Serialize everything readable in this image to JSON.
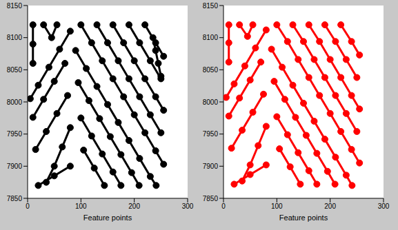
{
  "chart_data": [
    {
      "type": "scatter",
      "xlabel": "Feature points",
      "color": "#000000",
      "marker": "circle",
      "line_style": "solid",
      "grid": false,
      "xlim": [
        0,
        300
      ],
      "xticks": [
        0,
        100,
        200,
        300
      ],
      "ylim": [
        7850,
        8150
      ],
      "yticks": [
        7850,
        7900,
        7950,
        8000,
        8050,
        8100,
        8150
      ],
      "series": [
        {
          "x": [
            100,
            120,
            140,
            160,
            180,
            200,
            220,
            240,
            255
          ],
          "values": [
            8120,
            8092,
            8064,
            8036,
            8008,
            7980,
            7952,
            7924,
            7903
          ]
        },
        {
          "x": [
            130,
            150,
            170,
            190,
            210,
            230,
            250
          ],
          "values": [
            8120,
            8092,
            8064,
            8036,
            8008,
            7980,
            7952
          ]
        },
        {
          "x": [
            160,
            180,
            200,
            220,
            240,
            255
          ],
          "values": [
            8120,
            8092,
            8064,
            8036,
            8008,
            7987
          ]
        },
        {
          "x": [
            190,
            210,
            230,
            250
          ],
          "values": [
            8120,
            8092,
            8064,
            8036
          ]
        },
        {
          "x": [
            220,
            240,
            255
          ],
          "values": [
            8120,
            8092,
            8071
          ]
        },
        {
          "x": [
            90,
            110,
            130,
            150,
            170,
            190,
            210,
            230,
            241
          ],
          "values": [
            8080,
            8052,
            8024,
            7996,
            7968,
            7940,
            7912,
            7884,
            7870
          ]
        },
        {
          "x": [
            95,
            115,
            135,
            155,
            175,
            195,
            209
          ],
          "values": [
            8030,
            8002,
            7974,
            7946,
            7918,
            7890,
            7870
          ]
        },
        {
          "x": [
            100,
            120,
            140,
            160,
            175
          ],
          "values": [
            7975,
            7947,
            7919,
            7891,
            7870
          ]
        },
        {
          "x": [
            105,
            125,
            144
          ],
          "values": [
            7925,
            7897,
            7870
          ]
        },
        {
          "x": [
            80,
            60,
            40,
            20,
            5
          ],
          "values": [
            8110,
            8082,
            8054,
            8026,
            8005
          ]
        },
        {
          "x": [
            70,
            50,
            30,
            10
          ],
          "values": [
            8060,
            8032,
            8004,
            7976
          ]
        },
        {
          "x": [
            75,
            55,
            35,
            15
          ],
          "values": [
            8010,
            7982,
            7954,
            7926
          ]
        },
        {
          "x": [
            80,
            65,
            50,
            35
          ],
          "values": [
            7960,
            7930,
            7900,
            7875
          ]
        },
        {
          "x": [
            10,
            10,
            10
          ],
          "values": [
            8120,
            8090,
            8060
          ]
        },
        {
          "x": [
            30,
            45,
            55
          ],
          "values": [
            8120,
            8100,
            8120
          ]
        },
        {
          "x": [
            235,
            240,
            245,
            250
          ],
          "values": [
            8100,
            8080,
            8060,
            8040
          ]
        },
        {
          "x": [
            20,
            50,
            80
          ],
          "values": [
            7870,
            7885,
            7900
          ]
        }
      ]
    },
    {
      "type": "scatter",
      "xlabel": "Feature points",
      "color": "#ff0000",
      "marker": "circle",
      "line_style": "solid",
      "grid": false,
      "xlim": [
        0,
        300
      ],
      "xticks": [
        0,
        100,
        200,
        300
      ],
      "ylim": [
        7850,
        8150
      ],
      "yticks": [
        7850,
        7900,
        7950,
        8000,
        8050,
        8100,
        8150
      ],
      "series": [
        {
          "x": [
            100,
            120,
            140,
            160,
            180,
            200,
            220,
            240,
            255
          ],
          "values": [
            8120,
            8094,
            8066,
            8038,
            8010,
            7982,
            7954,
            7926,
            7905
          ]
        },
        {
          "x": [
            130,
            150,
            170,
            190,
            210,
            230,
            250
          ],
          "values": [
            8120,
            8094,
            8066,
            8038,
            8010,
            7982,
            7954
          ]
        },
        {
          "x": [
            160,
            180,
            200,
            220,
            240,
            255
          ],
          "values": [
            8120,
            8094,
            8066,
            8038,
            8010,
            7989
          ]
        },
        {
          "x": [
            190,
            210,
            230,
            250
          ],
          "values": [
            8120,
            8094,
            8066,
            8038
          ]
        },
        {
          "x": [
            220,
            240,
            255
          ],
          "values": [
            8120,
            8094,
            8073
          ]
        },
        {
          "x": [
            90,
            110,
            130,
            150,
            170,
            190,
            210,
            230,
            241
          ],
          "values": [
            8082,
            8054,
            8026,
            7998,
            7970,
            7942,
            7914,
            7886,
            7870
          ]
        },
        {
          "x": [
            95,
            115,
            135,
            155,
            175,
            195,
            209
          ],
          "values": [
            8032,
            8004,
            7976,
            7948,
            7920,
            7892,
            7872
          ]
        },
        {
          "x": [
            100,
            120,
            140,
            160,
            175
          ],
          "values": [
            7977,
            7949,
            7921,
            7893,
            7872
          ]
        },
        {
          "x": [
            105,
            125,
            144
          ],
          "values": [
            7927,
            7899,
            7872
          ]
        },
        {
          "x": [
            80,
            60,
            40,
            20,
            5
          ],
          "values": [
            8112,
            8084,
            8056,
            8028,
            8007
          ]
        },
        {
          "x": [
            70,
            50,
            30,
            10
          ],
          "values": [
            8062,
            8034,
            8006,
            7978
          ]
        },
        {
          "x": [
            75,
            55,
            35,
            15
          ],
          "values": [
            8012,
            7984,
            7956,
            7928
          ]
        },
        {
          "x": [
            80,
            65,
            50,
            35
          ],
          "values": [
            7962,
            7932,
            7902,
            7877
          ]
        },
        {
          "x": [
            10,
            10,
            10
          ],
          "values": [
            8120,
            8092,
            8062
          ]
        },
        {
          "x": [
            30,
            45,
            55
          ],
          "values": [
            8120,
            8102,
            8120
          ]
        },
        {
          "x": [
            20,
            50,
            80
          ],
          "values": [
            7872,
            7887,
            7902
          ]
        }
      ]
    }
  ]
}
